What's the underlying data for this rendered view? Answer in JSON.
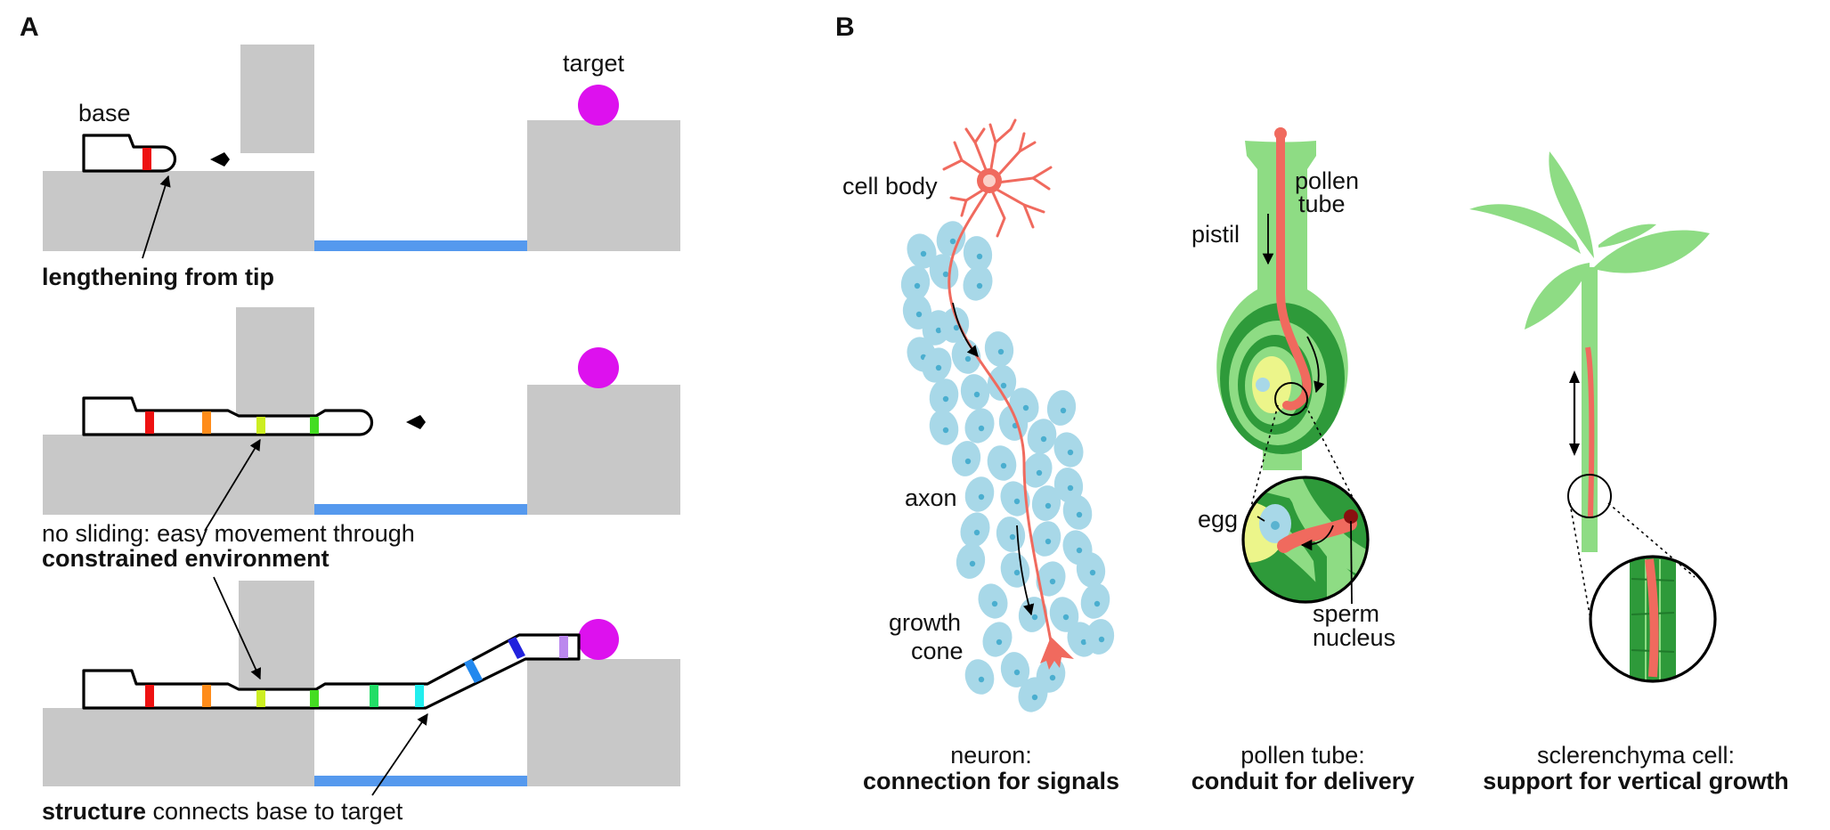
{
  "panel_a": {
    "letter": "A",
    "label_base": "base",
    "label_target": "target",
    "caption_1": "lengthening from tip",
    "caption_2_line1": "no sliding: easy movement through",
    "caption_2_line2": "constrained environment",
    "caption_3_bold": "structure",
    "caption_3_rest": " connects base to target"
  },
  "panel_b": {
    "letter": "B",
    "neuron": {
      "cell_body": "cell body",
      "axon": "axon",
      "growth_line1": "growth",
      "growth_line2": "cone",
      "title": "neuron:",
      "subtitle": "connection for signals"
    },
    "pollen": {
      "pollen_line1": "pollen",
      "pollen_line2": "tube",
      "pistil": "pistil",
      "egg": "egg",
      "sperm_line1": "sperm",
      "sperm_line2": "nucleus",
      "title": "pollen tube:",
      "subtitle": "conduit for delivery"
    },
    "scler": {
      "title": "sclerenchyma cell:",
      "subtitle": "support for vertical growth"
    }
  },
  "colors": {
    "obstacle": "#c8c8c8",
    "channel": "#5599ee",
    "target": "#dd11ee",
    "neuron": "#f06a5e",
    "nucleus_cells": "#a8d8e8",
    "plant_green": "#8edc84",
    "dark_green": "#2e9a3a",
    "ovule_yellow": "#ecf58a"
  },
  "marker_colors": [
    "#ee1111",
    "#ff8c1a",
    "#ccee22",
    "#44dd22",
    "#22dd66",
    "#22eeee",
    "#2288ee",
    "#2222dd",
    "#bb88ee"
  ]
}
